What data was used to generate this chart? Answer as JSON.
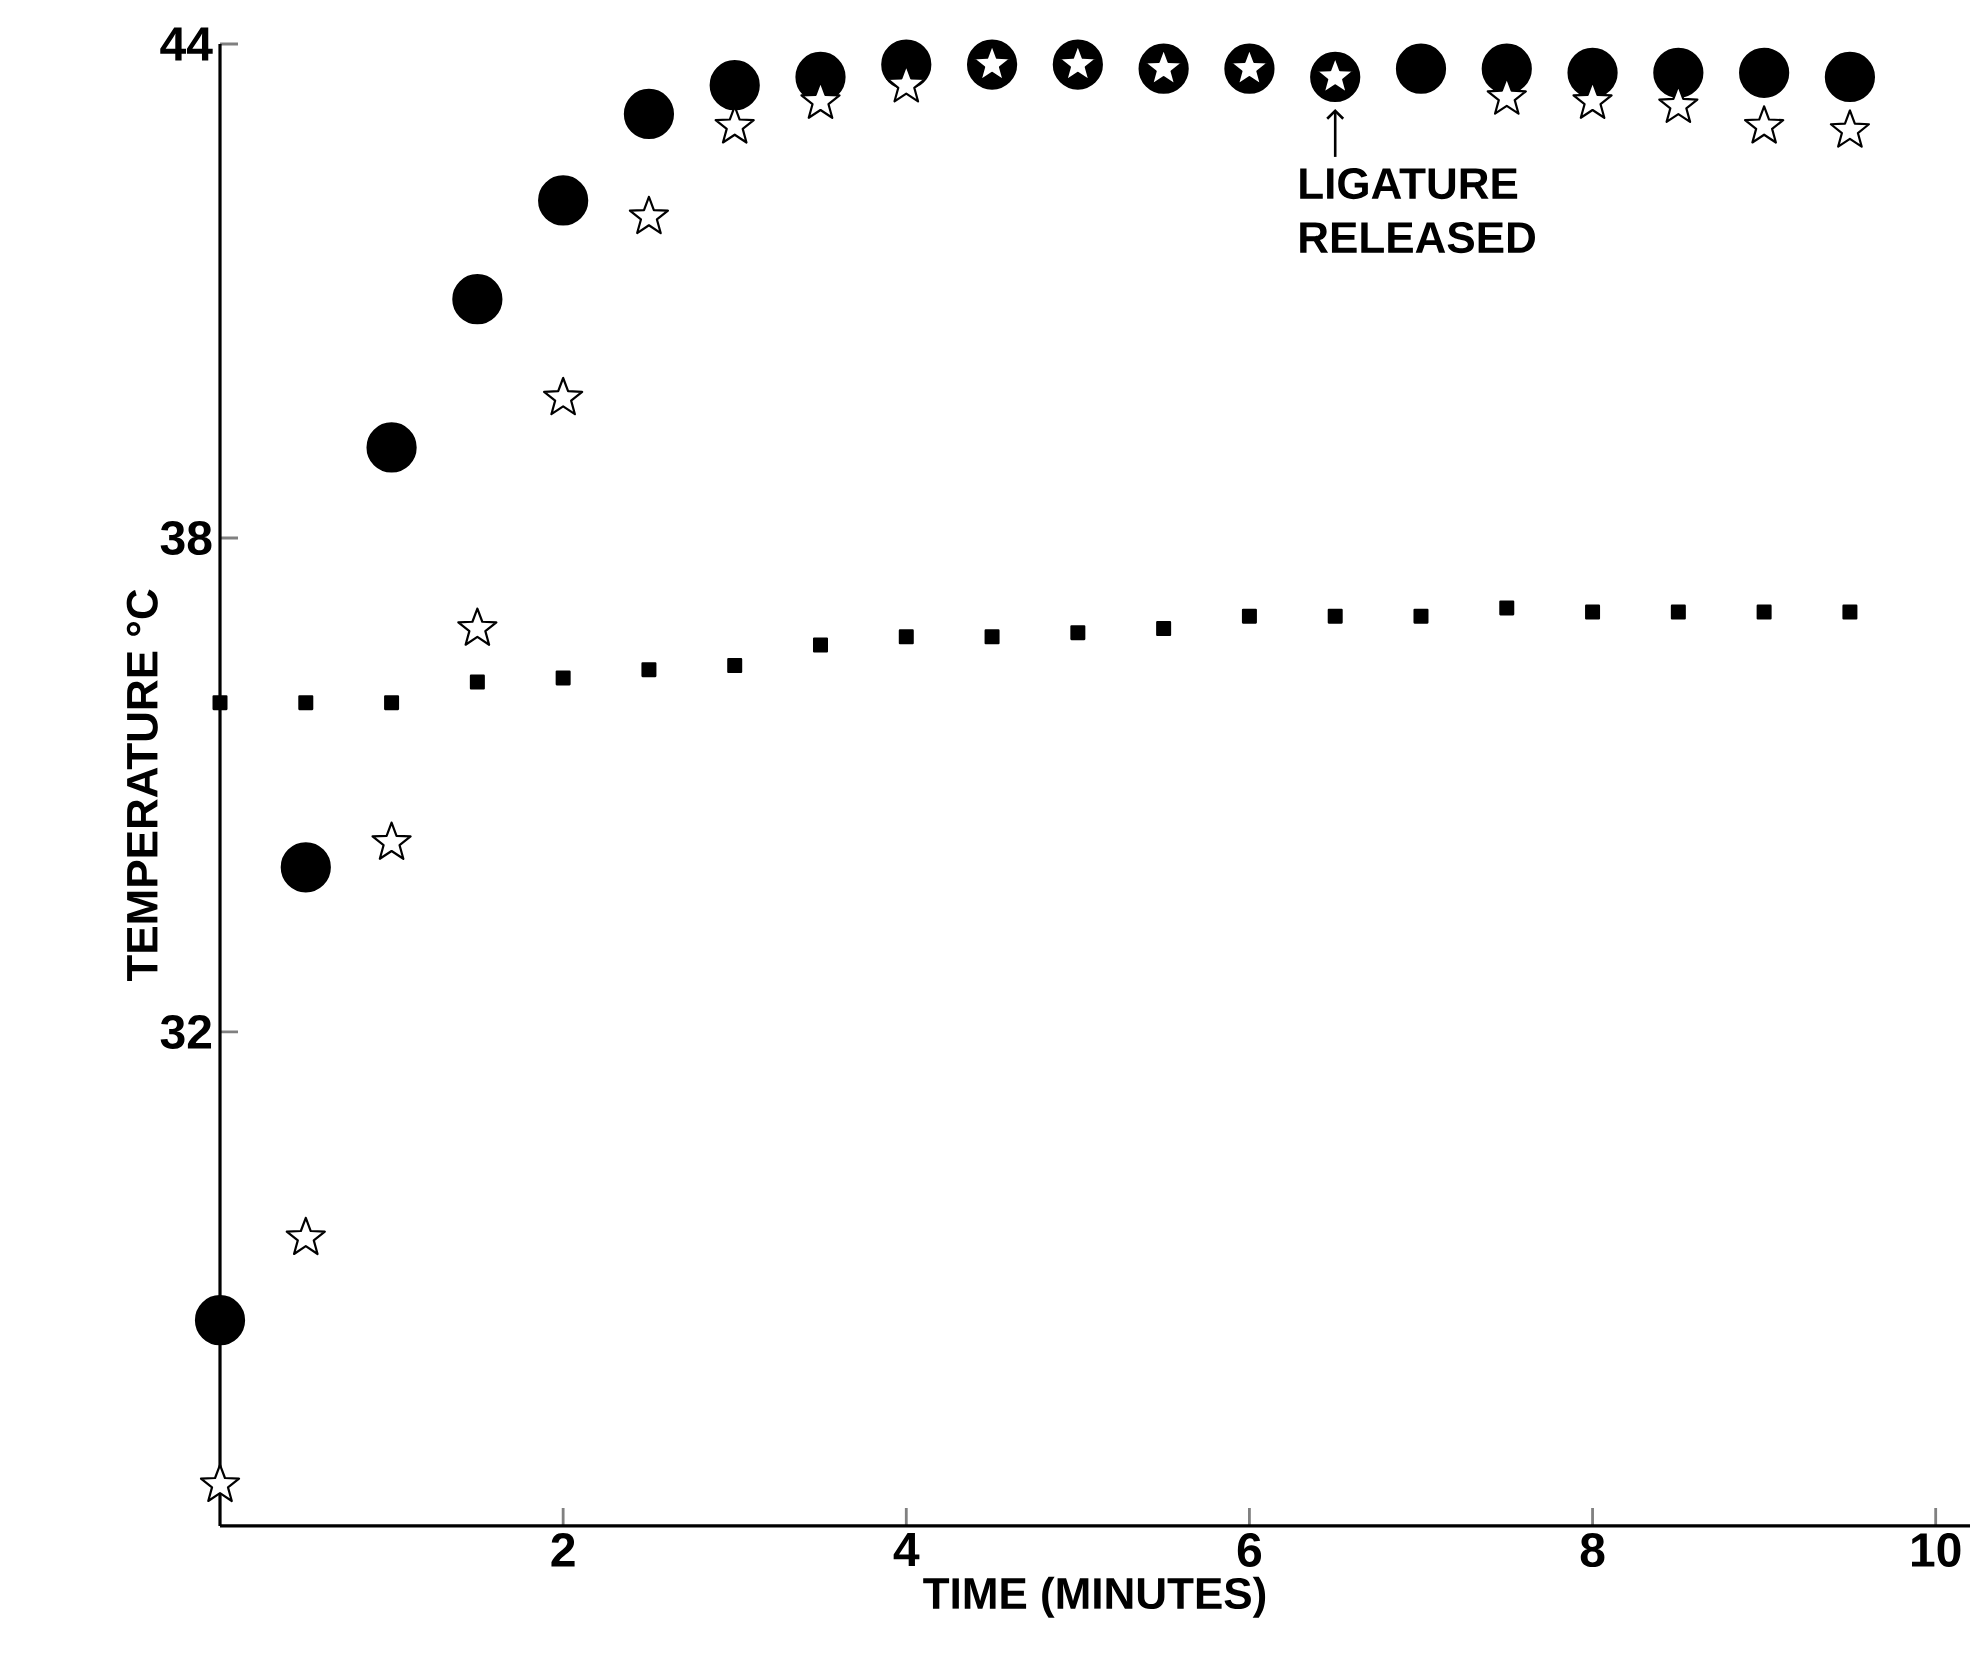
{
  "chart_data": {
    "type": "scatter",
    "xlabel": "TIME (MINUTES)",
    "ylabel": "TEMPERATURE °C",
    "xlim": [
      0,
      10.2
    ],
    "ylim": [
      26,
      44
    ],
    "xticks": [
      2,
      4,
      6,
      8,
      10
    ],
    "yticks": [
      32,
      38,
      44
    ],
    "x": [
      0,
      0.5,
      1,
      1.5,
      2,
      2.5,
      3,
      3.5,
      4,
      4.5,
      5,
      5.5,
      6,
      6.5,
      7,
      7.5,
      8,
      8.5,
      9,
      9.5
    ],
    "series": [
      {
        "color": "#000000",
        "marker": "circle",
        "values": [
          28.5,
          34.0,
          39.1,
          40.9,
          42.1,
          43.15,
          43.5,
          43.6,
          43.75,
          43.75,
          43.75,
          43.7,
          43.7,
          43.6,
          43.7,
          43.7,
          43.65,
          43.65,
          43.65,
          43.6
        ]
      },
      {
        "color": "#000000",
        "marker": "star",
        "values": [
          26.5,
          29.5,
          34.3,
          36.9,
          39.7,
          41.9,
          43.0,
          43.3,
          43.5,
          43.75,
          43.75,
          43.7,
          43.7,
          43.6,
          null,
          43.35,
          43.3,
          43.25,
          43.0,
          42.95
        ]
      },
      {
        "color": "#000000",
        "marker": "square",
        "values": [
          36.0,
          36.0,
          36.0,
          36.25,
          36.3,
          36.4,
          36.45,
          36.7,
          36.8,
          36.8,
          36.85,
          36.9,
          37.05,
          37.05,
          37.05,
          37.15,
          37.1,
          37.1,
          37.1,
          37.1
        ]
      }
    ],
    "annotations": [
      {
        "text": "LIGATURE RELEASED",
        "x": 6.5,
        "y": 43.6
      }
    ]
  }
}
